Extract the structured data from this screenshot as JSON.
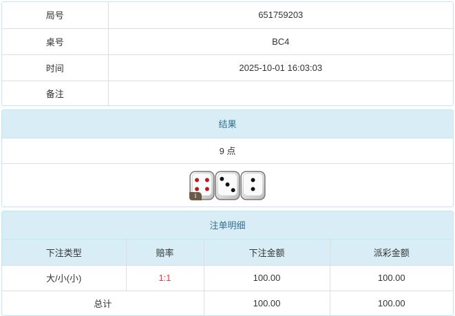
{
  "info": {
    "rows": [
      {
        "label": "局号",
        "value": "651759203"
      },
      {
        "label": "桌号",
        "value": "BC4"
      },
      {
        "label": "时间",
        "value": "2025-10-01 16:03:03"
      },
      {
        "label": "备注",
        "value": ""
      }
    ]
  },
  "result": {
    "title": "结果",
    "points": "9 点",
    "dice": [
      4,
      3,
      2
    ],
    "info_icon": "i"
  },
  "bets": {
    "title": "注单明细",
    "headers": [
      "下注类型",
      "赔率",
      "下注金额",
      "派彩金额"
    ],
    "row": [
      "大/小(小)",
      "1:1",
      "100.00",
      "100.00"
    ],
    "total_label": "总计",
    "total_bet": "100.00",
    "total_payout": "100.00"
  }
}
